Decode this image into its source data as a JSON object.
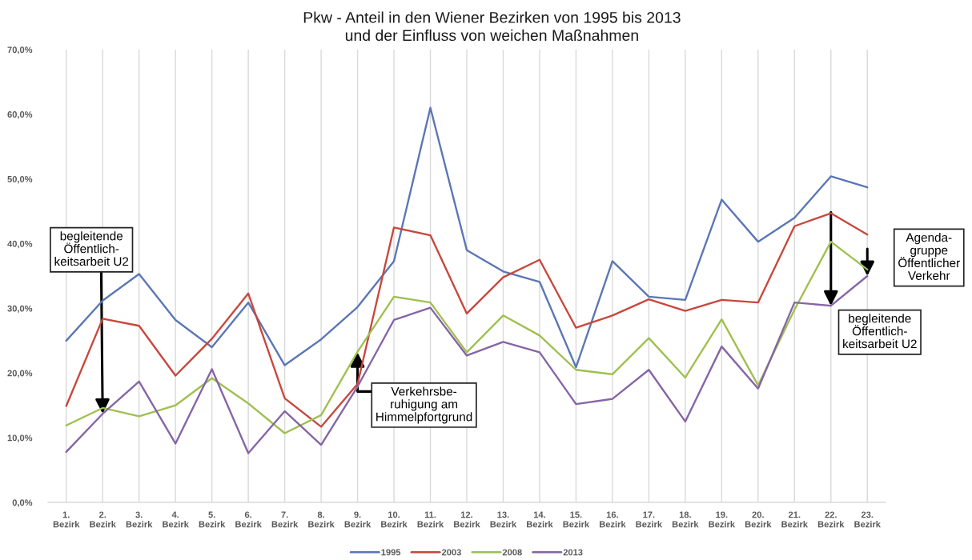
{
  "chart_data": {
    "type": "line",
    "title": "Pkw - Anteil in den Wiener Bezirken von 1995 bis 2013\nund der Einfluss von weichen Maßnahmen",
    "categories": [
      "1.\nBezirk",
      "2.\nBezirk",
      "3.\nBezirk",
      "4.\nBezirk",
      "5.\nBezirk",
      "6.\nBezirk",
      "7.\nBezirk",
      "8.\nBezirk",
      "9.\nBezirk",
      "10.\nBezirk",
      "11.\nBezirk",
      "12.\nBezirk",
      "13.\nBezirk",
      "14.\nBezirk",
      "15.\nBezirk",
      "16.\nBezirk",
      "17.\nBezirk",
      "18.\nBezirk",
      "19.\nBezirk",
      "20.\nBezirk",
      "21.\nBezirk",
      "22.\nBezirk",
      "23.\nBezirk"
    ],
    "series": [
      {
        "name": "1995",
        "color": "#5a76b5",
        "values": [
          25.0,
          31.2,
          35.3,
          28.2,
          24.0,
          30.9,
          21.2,
          25.2,
          30.2,
          37.3,
          61.0,
          39.0,
          35.7,
          34.1,
          20.9,
          37.3,
          31.8,
          31.3,
          46.8,
          40.3,
          44.0,
          50.4,
          48.7
        ]
      },
      {
        "name": "2003",
        "color": "#c8473d",
        "values": [
          14.9,
          28.4,
          27.3,
          19.6,
          25.3,
          32.3,
          16.1,
          11.7,
          18.3,
          42.5,
          41.3,
          29.2,
          34.8,
          37.5,
          27.0,
          28.9,
          31.4,
          29.6,
          31.3,
          30.9,
          42.7,
          44.7,
          41.4
        ]
      },
      {
        "name": "2008",
        "color": "#9fc04f",
        "values": [
          11.9,
          14.6,
          13.3,
          15.0,
          19.2,
          15.3,
          10.7,
          13.5,
          23.3,
          31.8,
          30.9,
          23.2,
          28.9,
          25.8,
          20.5,
          19.8,
          25.4,
          19.3,
          28.3,
          18.1,
          29.8,
          40.3,
          36.0
        ]
      },
      {
        "name": "2013",
        "color": "#8664a5",
        "values": [
          7.8,
          13.7,
          18.7,
          9.1,
          20.6,
          7.6,
          14.1,
          8.9,
          17.9,
          28.2,
          30.1,
          22.7,
          24.8,
          23.2,
          15.2,
          16.0,
          20.5,
          12.5,
          24.1,
          17.6,
          30.9,
          30.4,
          35.0
        ]
      }
    ],
    "ylim": [
      0,
      70
    ],
    "yticks": [
      {
        "value": 0,
        "label": "0,0%"
      },
      {
        "value": 10,
        "label": "10,0%"
      },
      {
        "value": 20,
        "label": "20,0%"
      },
      {
        "value": 30,
        "label": "30,0%"
      },
      {
        "value": 40,
        "label": "40,0%"
      },
      {
        "value": 50,
        "label": "50,0%"
      },
      {
        "value": 60,
        "label": "60,0%"
      },
      {
        "value": 70,
        "label": "70,0%"
      }
    ],
    "grid": "x",
    "legend": "bottom",
    "annotations": [
      {
        "text": "begleitende\nÖffentlich-\nkeitsarbeit U2",
        "x": "2.\nBezirk",
        "y": 13.7
      },
      {
        "text": "Verkehrsbe-\nruhigung am\nHimmelpfortgrund",
        "x": "9.\nBezirk",
        "y": 23.2
      },
      {
        "text": "begleitende\nÖffentlich-\nkeitsarbeit U2",
        "x": "22.\nBezirk",
        "y": 30.4
      },
      {
        "text": "Agenda-\ngruppe\nÖffentlicher\nVerkehr",
        "x": "23.\nBezirk",
        "y": 35.0
      }
    ]
  }
}
